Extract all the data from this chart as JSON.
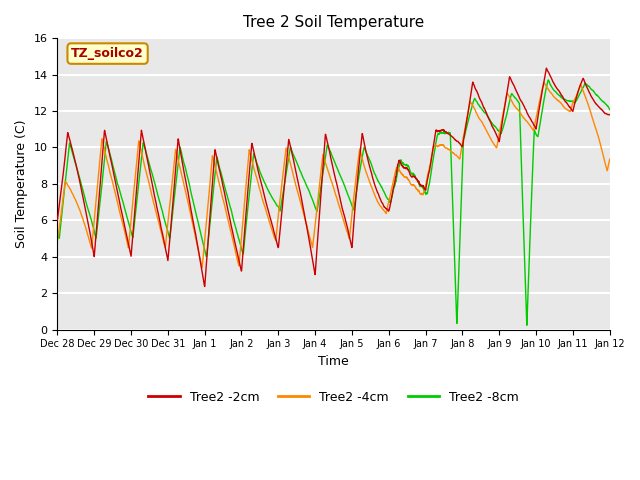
{
  "title": "Tree 2 Soil Temperature",
  "xlabel": "Time",
  "ylabel": "Soil Temperature (C)",
  "ylim": [
    0,
    16
  ],
  "yticks": [
    0,
    2,
    4,
    6,
    8,
    10,
    12,
    14,
    16
  ],
  "background_color": "#e8e8e8",
  "grid_color": "white",
  "annotation_text": "TZ_soilco2",
  "annotation_bg": "#ffffcc",
  "annotation_border": "#cc8800",
  "series": [
    {
      "label": "Tree2 -2cm",
      "color": "#cc0000",
      "linewidth": 1.0
    },
    {
      "label": "Tree2 -4cm",
      "color": "#ff8800",
      "linewidth": 1.0
    },
    {
      "label": "Tree2 -8cm",
      "color": "#00cc00",
      "linewidth": 1.0
    }
  ],
  "xtick_labels": [
    "Dec 28",
    "Dec 29",
    "Dec 30",
    "Dec 31",
    "Jan 1",
    "Jan 2",
    "Jan 3",
    "Jan 4",
    "Jan 5",
    "Jan 6",
    "Jan 7",
    "Jan 8",
    "Jan 9",
    "Jan 10",
    "Jan 11",
    "Jan 12"
  ],
  "num_points": 2880
}
